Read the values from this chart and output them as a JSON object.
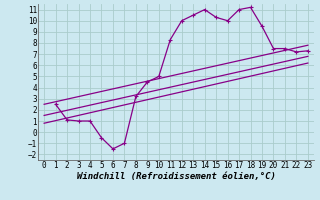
{
  "xlabel": "Windchill (Refroidissement éolien,°C)",
  "background_color": "#cce8f0",
  "grid_color": "#aacccc",
  "line_color": "#880088",
  "xlim": [
    -0.5,
    23.5
  ],
  "ylim": [
    -2.5,
    11.5
  ],
  "xticks": [
    0,
    1,
    2,
    3,
    4,
    5,
    6,
    7,
    8,
    9,
    10,
    11,
    12,
    13,
    14,
    15,
    16,
    17,
    18,
    19,
    20,
    21,
    22,
    23
  ],
  "yticks": [
    -2,
    -1,
    0,
    1,
    2,
    3,
    4,
    5,
    6,
    7,
    8,
    9,
    10,
    11
  ],
  "line1_x": [
    1,
    2,
    3,
    4,
    5,
    6,
    7,
    8,
    9,
    10,
    11,
    12,
    13,
    14,
    15,
    16,
    17,
    18,
    19,
    20,
    21,
    22,
    23
  ],
  "line1_y": [
    2.5,
    1.1,
    1.0,
    1.0,
    -0.5,
    -1.5,
    -1.0,
    3.2,
    4.5,
    5.0,
    8.3,
    10.0,
    10.5,
    11.0,
    10.3,
    10.0,
    11.0,
    11.2,
    9.5,
    7.5,
    7.5,
    7.2,
    7.3
  ],
  "line2_x": [
    0,
    23
  ],
  "line2_y": [
    2.5,
    7.8
  ],
  "line3_x": [
    0,
    23
  ],
  "line3_y": [
    1.5,
    6.8
  ],
  "line4_x": [
    0,
    23
  ],
  "line4_y": [
    0.8,
    6.2
  ],
  "tick_fontsize": 5.5,
  "label_fontsize": 6.5
}
